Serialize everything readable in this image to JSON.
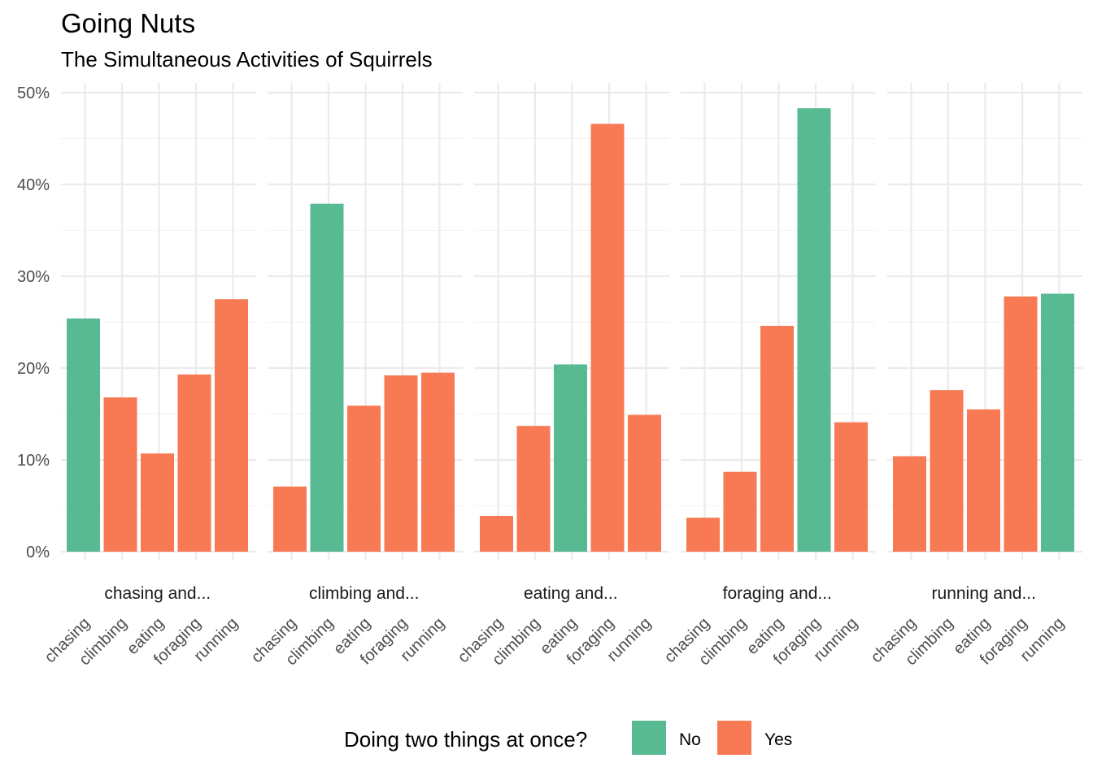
{
  "chart_data": {
    "type": "bar",
    "title": "Going Nuts",
    "subtitle": "The Simultaneous Activities of Squirrels",
    "xlabel": "",
    "ylabel": "",
    "ylim": [
      0,
      0.5
    ],
    "y_ticks": [
      {
        "value": 0.0,
        "label": "0%"
      },
      {
        "value": 0.1,
        "label": "10%"
      },
      {
        "value": 0.2,
        "label": "20%"
      },
      {
        "value": 0.3,
        "label": "30%"
      },
      {
        "value": 0.4,
        "label": "40%"
      },
      {
        "value": 0.5,
        "label": "50%"
      }
    ],
    "grid": true,
    "legend": {
      "title": "Doing two things at once?",
      "position": "bottom",
      "entries": [
        {
          "key": "No",
          "label": "No",
          "color": "#57BA93"
        },
        {
          "key": "Yes",
          "label": "Yes",
          "color": "#F87A54"
        }
      ]
    },
    "categories": [
      "chasing",
      "climbing",
      "eating",
      "foraging",
      "running"
    ],
    "facets": [
      {
        "label": "chasing and...",
        "values": [
          0.254,
          0.168,
          0.107,
          0.193,
          0.275
        ],
        "groups": [
          "No",
          "Yes",
          "Yes",
          "Yes",
          "Yes"
        ]
      },
      {
        "label": "climbing and...",
        "values": [
          0.071,
          0.379,
          0.159,
          0.192,
          0.195
        ],
        "groups": [
          "Yes",
          "No",
          "Yes",
          "Yes",
          "Yes"
        ]
      },
      {
        "label": "eating and...",
        "values": [
          0.039,
          0.137,
          0.204,
          0.466,
          0.149
        ],
        "groups": [
          "Yes",
          "Yes",
          "No",
          "Yes",
          "Yes"
        ]
      },
      {
        "label": "foraging and...",
        "values": [
          0.037,
          0.087,
          0.246,
          0.483,
          0.141
        ],
        "groups": [
          "Yes",
          "Yes",
          "Yes",
          "No",
          "Yes"
        ]
      },
      {
        "label": "running and...",
        "values": [
          0.104,
          0.176,
          0.155,
          0.278,
          0.281
        ],
        "groups": [
          "Yes",
          "Yes",
          "Yes",
          "Yes",
          "No"
        ]
      }
    ]
  }
}
